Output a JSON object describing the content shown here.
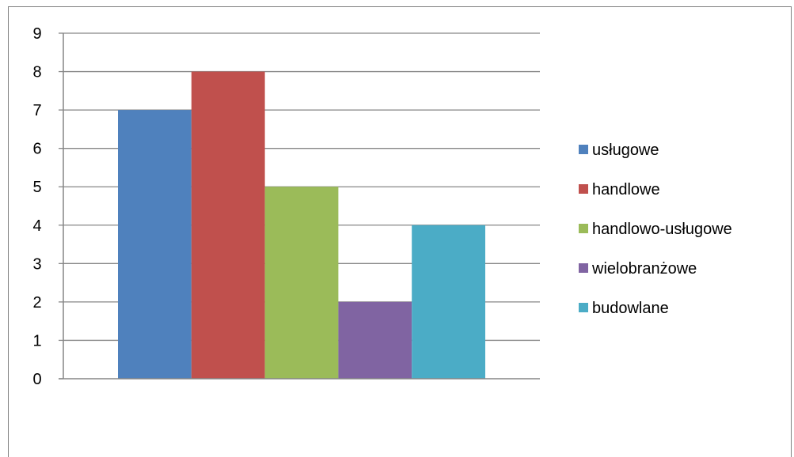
{
  "chart_data": {
    "type": "bar",
    "categories": [
      ""
    ],
    "series": [
      {
        "name": "usługowe",
        "values": [
          7
        ],
        "color": "#4f81bd"
      },
      {
        "name": "handlowe",
        "values": [
          8
        ],
        "color": "#c0504d"
      },
      {
        "name": "handlowo-usługowe",
        "values": [
          5
        ],
        "color": "#9bbb59"
      },
      {
        "name": "wielobranżowe",
        "values": [
          2
        ],
        "color": "#8064a2"
      },
      {
        "name": "budowlane",
        "values": [
          4
        ],
        "color": "#4bacc6"
      }
    ],
    "y_ticks": [
      "0",
      "1",
      "2",
      "3",
      "4",
      "5",
      "6",
      "7",
      "8",
      "9"
    ],
    "ylim": [
      0,
      9
    ],
    "title": "",
    "xlabel": "",
    "ylabel": "",
    "grid": true,
    "legend_position": "right",
    "gridline_color": "#868686",
    "axis_color": "#868686"
  }
}
